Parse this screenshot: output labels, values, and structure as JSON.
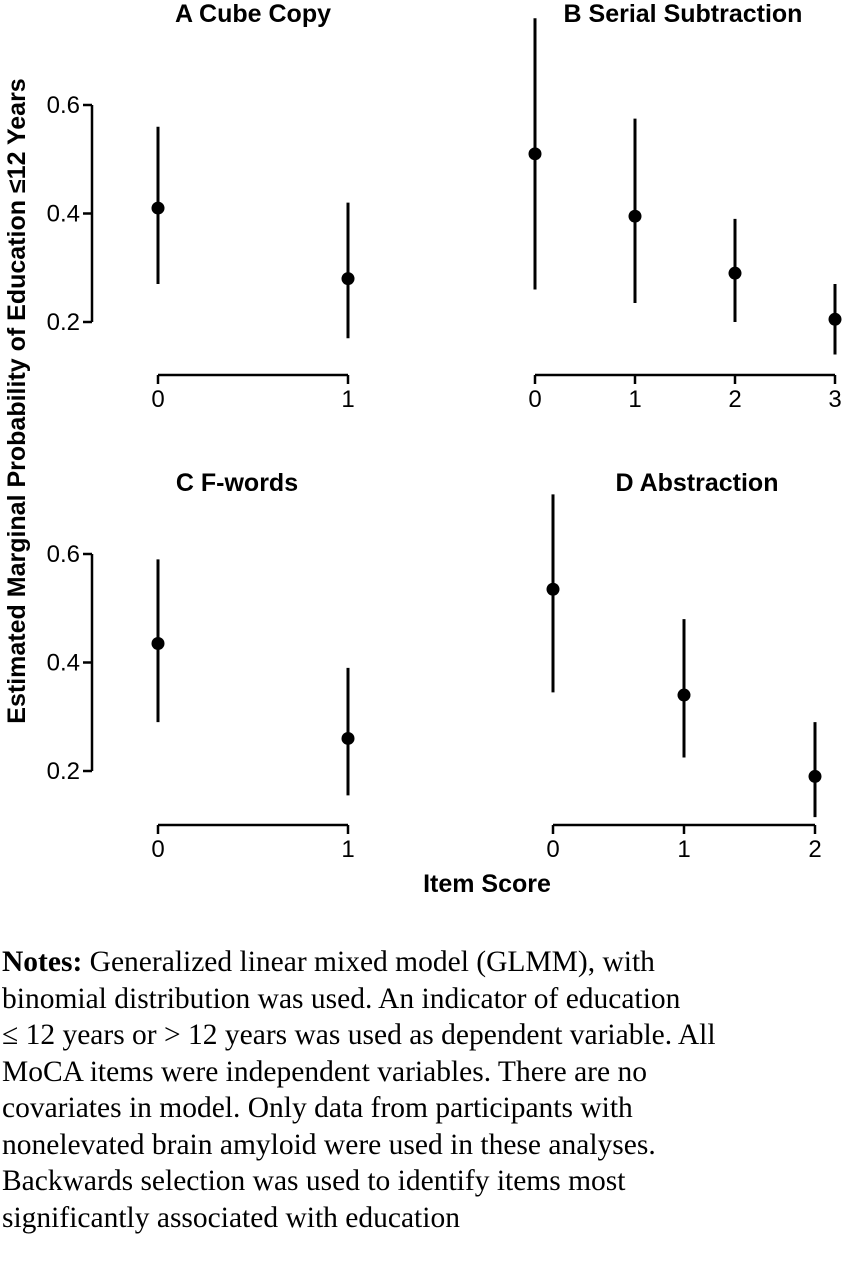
{
  "chart_data": [
    {
      "type": "scatter",
      "title": "A Cube Copy",
      "categories": [
        "0",
        "1"
      ],
      "x": [
        0,
        1
      ],
      "values": [
        0.41,
        0.28
      ],
      "ci_low": [
        0.27,
        0.17
      ],
      "ci_high": [
        0.56,
        0.42
      ],
      "ylim": [
        0.2,
        0.6
      ],
      "yticks": [
        "0.2",
        "0.4",
        "0.6"
      ],
      "xticks": [
        "0",
        "1"
      ]
    },
    {
      "type": "scatter",
      "title": "B Serial Subtraction",
      "categories": [
        "0",
        "1",
        "2",
        "3"
      ],
      "x": [
        0,
        1,
        2,
        3
      ],
      "values": [
        0.51,
        0.395,
        0.29,
        0.205
      ],
      "ci_low": [
        0.26,
        0.235,
        0.2,
        0.14
      ],
      "ci_high": [
        0.76,
        0.575,
        0.39,
        0.27
      ],
      "xticks": [
        "0",
        "1",
        "2",
        "3"
      ]
    },
    {
      "type": "scatter",
      "title": "C F-words",
      "categories": [
        "0",
        "1"
      ],
      "x": [
        0,
        1
      ],
      "values": [
        0.435,
        0.26
      ],
      "ci_low": [
        0.29,
        0.155
      ],
      "ci_high": [
        0.59,
        0.39
      ],
      "ylim": [
        0.2,
        0.6
      ],
      "yticks": [
        "0.2",
        "0.4",
        "0.6"
      ],
      "xticks": [
        "0",
        "1"
      ]
    },
    {
      "type": "scatter",
      "title": "D Abstraction",
      "categories": [
        "0",
        "1",
        "2"
      ],
      "x": [
        0,
        1,
        2
      ],
      "values": [
        0.535,
        0.34,
        0.19
      ],
      "ci_low": [
        0.345,
        0.225,
        0.115
      ],
      "ci_high": [
        0.71,
        0.48,
        0.29
      ],
      "xticks": [
        "0",
        "1",
        "2"
      ]
    }
  ],
  "ylabel": "Estimated Marginal Probability of Education ≤12  Years",
  "xlabel": "Item Score",
  "notes": {
    "label": "Notes:",
    "lines": [
      " Generalized linear mixed model (GLMM), with",
      "binomial distribution was used. An indicator of education",
      "≤ 12 years or  > 12 years was used as dependent variable. All",
      "MoCA items were independent variables. There are no",
      "covariates in model. Only data from participants with",
      "nonelevated brain amyloid were used in these analyses.",
      "Backwards selection was used to identify items most",
      "significantly associated with education"
    ]
  }
}
